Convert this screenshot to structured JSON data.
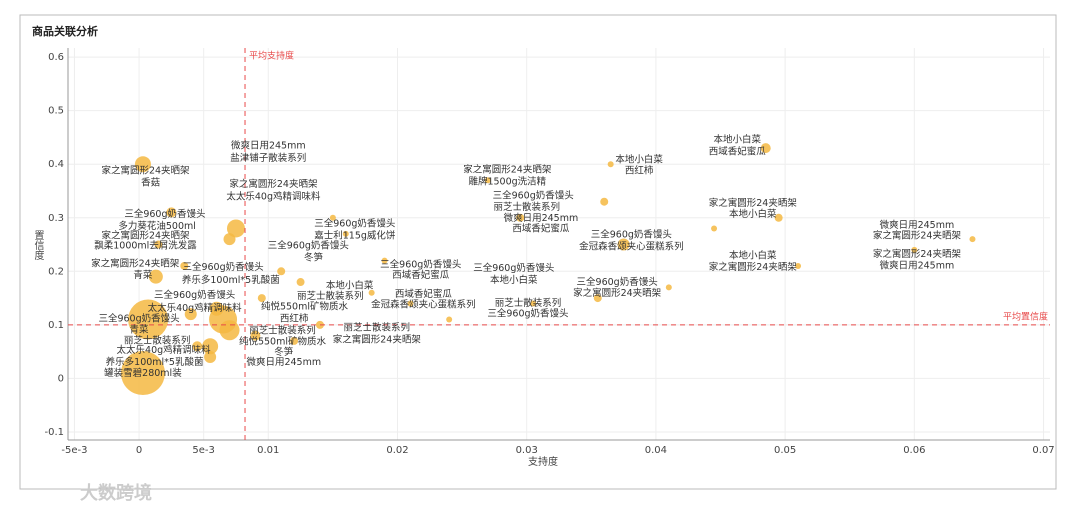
{
  "title": "商品关联分析",
  "watermark": "大数跨境",
  "chart_data": {
    "type": "scatter",
    "x_label": "支持度",
    "y_label": "置信度",
    "xlim": [
      -0.0055,
      0.0705
    ],
    "ylim": [
      -0.115,
      0.617
    ],
    "xticks": [
      {
        "value": -0.005,
        "label": "-5e-3"
      },
      0,
      {
        "value": 0.005,
        "label": "5e-3"
      },
      0.01,
      0.02,
      0.03,
      0.04,
      0.05,
      0.06,
      0.07
    ],
    "yticks": [
      -0.1,
      0,
      0.1,
      0.2,
      0.3,
      0.4,
      0.5,
      0.6
    ],
    "grid": true,
    "color": "#f5b942",
    "x": [
      0.0003,
      0.0003,
      0.0007,
      0.0013,
      0.0075,
      0.007,
      0.0065,
      0.007,
      0.0055,
      0.0055,
      0.004,
      0.0025,
      0.0045,
      0.006,
      0.009,
      0.0095,
      0.011,
      0.012,
      0.014,
      0.0125,
      0.015,
      0.016,
      0.018,
      0.019,
      0.021,
      0.024,
      0.027,
      0.0295,
      0.0305,
      0.036,
      0.0355,
      0.0375,
      0.041,
      0.0365,
      0.0445,
      0.0485,
      0.0495,
      0.051,
      0.0645,
      0.06,
      0.0035,
      0.0015
    ],
    "y": [
      0.4,
      0.01,
      0.11,
      0.19,
      0.28,
      0.26,
      0.11,
      0.09,
      0.06,
      0.04,
      0.12,
      0.31,
      0.06,
      0.13,
      0.08,
      0.15,
      0.2,
      0.07,
      0.1,
      0.18,
      0.3,
      0.27,
      0.16,
      0.22,
      0.14,
      0.11,
      0.37,
      0.3,
      0.14,
      0.33,
      0.15,
      0.25,
      0.17,
      0.4,
      0.28,
      0.43,
      0.3,
      0.21,
      0.26,
      0.24,
      0.21,
      0.25
    ],
    "sizes": [
      8,
      22,
      20,
      7,
      9,
      6,
      14,
      10,
      8,
      6,
      6,
      5,
      5,
      7,
      5,
      4,
      4,
      4,
      4,
      4,
      3,
      3,
      3,
      3,
      3,
      3,
      3,
      4,
      3,
      4,
      4,
      6,
      3,
      3,
      3,
      5,
      4,
      3,
      3,
      3,
      4,
      4
    ],
    "ref_lines": {
      "x": 0.0082,
      "x_label": "平均支持度",
      "y": 0.1,
      "y_label": "平均置信度",
      "color": "#e84a4a"
    },
    "annotations": [
      {
        "text": "微爽日用245mm",
        "x": 0.01,
        "y": 0.434
      },
      {
        "text": "盐津铺子散装系列",
        "x": 0.01,
        "y": 0.411
      },
      {
        "text": "家之寓圆形24夹晒架",
        "x": 0.0005,
        "y": 0.387
      },
      {
        "text": "香菇",
        "x": 0.0009,
        "y": 0.365
      },
      {
        "text": "家之寓圆形24夹晒架",
        "x": 0.0104,
        "y": 0.362
      },
      {
        "text": "太太乐40g鸡精调味料",
        "x": 0.0104,
        "y": 0.339
      },
      {
        "text": "三全960g奶香馒头",
        "x": 0.002,
        "y": 0.306
      },
      {
        "text": "多力葵花油500ml",
        "x": 0.0014,
        "y": 0.284
      },
      {
        "text": "家之寓圆形24夹晒架",
        "x": 0.0005,
        "y": 0.266
      },
      {
        "text": "飘柔1000ml去屑洗发露",
        "x": 0.0005,
        "y": 0.247
      },
      {
        "text": "三全960g奶香馒头",
        "x": 0.0167,
        "y": 0.288
      },
      {
        "text": "嘉士利115g威化饼",
        "x": 0.0167,
        "y": 0.266
      },
      {
        "text": "三全960g奶香馒头",
        "x": 0.0131,
        "y": 0.247
      },
      {
        "text": "冬笋",
        "x": 0.0135,
        "y": 0.225
      },
      {
        "text": "家之寓圆形24夹晒架",
        "x": -0.0003,
        "y": 0.214
      },
      {
        "text": "青菜",
        "x": 0.0003,
        "y": 0.192
      },
      {
        "text": "三全960g奶香馒头",
        "x": 0.0065,
        "y": 0.207
      },
      {
        "text": "养乐多100ml*5乳酸菌",
        "x": 0.0071,
        "y": 0.183
      },
      {
        "text": "本地小白菜",
        "x": 0.0163,
        "y": 0.173
      },
      {
        "text": "丽芝士散装系列",
        "x": 0.0148,
        "y": 0.153
      },
      {
        "text": "纯悦550ml矿物质水",
        "x": 0.0128,
        "y": 0.133
      },
      {
        "text": "西红柿",
        "x": 0.012,
        "y": 0.111
      },
      {
        "text": "三全960g奶香馒头",
        "x": 0.0218,
        "y": 0.212
      },
      {
        "text": "西域香妃蜜瓜",
        "x": 0.0218,
        "y": 0.192
      },
      {
        "text": "西域香妃蜜瓜",
        "x": 0.022,
        "y": 0.157
      },
      {
        "text": "金冠森香颂夹心蛋糕系列",
        "x": 0.022,
        "y": 0.137
      },
      {
        "text": "三全960g奶香馒头",
        "x": 0.0043,
        "y": 0.155
      },
      {
        "text": "太太乐40g鸡精调味料",
        "x": 0.0043,
        "y": 0.131
      },
      {
        "text": "三全960g奶香馒头",
        "x": 0,
        "y": 0.111
      },
      {
        "text": "青菜",
        "x": 0,
        "y": 0.09
      },
      {
        "text": "丽芝士散装系列",
        "x": 0.0014,
        "y": 0.07
      },
      {
        "text": "太太乐40g鸡精调味料",
        "x": 0.0019,
        "y": 0.052
      },
      {
        "text": "养乐多100ml*5乳酸菌",
        "x": 0.0012,
        "y": 0.03
      },
      {
        "text": "罐装雪碧280ml装",
        "x": 0.0003,
        "y": 0.009
      },
      {
        "text": "丽芝士散装系列",
        "x": 0.0111,
        "y": 0.089
      },
      {
        "text": "纯悦550ml矿物质水",
        "x": 0.0111,
        "y": 0.068
      },
      {
        "text": "冬笋",
        "x": 0.0112,
        "y": 0.048
      },
      {
        "text": "微爽日用245mm",
        "x": 0.0112,
        "y": 0.03
      },
      {
        "text": "丽芝士散装系列",
        "x": 0.0184,
        "y": 0.094
      },
      {
        "text": "家之寓圆形24夹晒架",
        "x": 0.0184,
        "y": 0.072
      },
      {
        "text": "家之寓圆形24夹晒架",
        "x": 0.0285,
        "y": 0.389
      },
      {
        "text": "雕牌1500g洗洁精",
        "x": 0.0285,
        "y": 0.367
      },
      {
        "text": "三全960g奶香馒头",
        "x": 0.0305,
        "y": 0.341
      },
      {
        "text": "丽芝士散装系列",
        "x": 0.03,
        "y": 0.319
      },
      {
        "text": "微爽日用245mm",
        "x": 0.0311,
        "y": 0.299
      },
      {
        "text": "西域香妃蜜瓜",
        "x": 0.0311,
        "y": 0.279
      },
      {
        "text": "本地小白菜",
        "x": 0.0387,
        "y": 0.408
      },
      {
        "text": "西红柿",
        "x": 0.0387,
        "y": 0.387
      },
      {
        "text": "三全960g奶香馒头",
        "x": 0.0381,
        "y": 0.268
      },
      {
        "text": "金冠森香颂夹心蛋糕系列",
        "x": 0.0381,
        "y": 0.245
      },
      {
        "text": "三全960g奶香馒头",
        "x": 0.029,
        "y": 0.205
      },
      {
        "text": "本地小白菜",
        "x": 0.029,
        "y": 0.183
      },
      {
        "text": "三全960g奶香馒头",
        "x": 0.037,
        "y": 0.179
      },
      {
        "text": "家之寓圆形24夹晒架",
        "x": 0.037,
        "y": 0.159
      },
      {
        "text": "丽芝士散装系列",
        "x": 0.0301,
        "y": 0.14
      },
      {
        "text": "三全960g奶香馒头",
        "x": 0.0301,
        "y": 0.12
      },
      {
        "text": "本地小白菜",
        "x": 0.0463,
        "y": 0.445
      },
      {
        "text": "西域香妃蜜瓜",
        "x": 0.0463,
        "y": 0.423
      },
      {
        "text": "家之寓圆形24夹晒架",
        "x": 0.0475,
        "y": 0.327
      },
      {
        "text": "本地小白菜",
        "x": 0.0475,
        "y": 0.306
      },
      {
        "text": "本地小白菜",
        "x": 0.0475,
        "y": 0.229
      },
      {
        "text": "家之寓圆形24夹晒架",
        "x": 0.0475,
        "y": 0.207
      },
      {
        "text": "微爽日用245mm",
        "x": 0.0602,
        "y": 0.286
      },
      {
        "text": "家之寓圆形24夹晒架",
        "x": 0.0602,
        "y": 0.266
      },
      {
        "text": "家之寓圆形24夹晒架",
        "x": 0.0602,
        "y": 0.231
      },
      {
        "text": "微爽日用245mm",
        "x": 0.0602,
        "y": 0.21
      }
    ]
  }
}
